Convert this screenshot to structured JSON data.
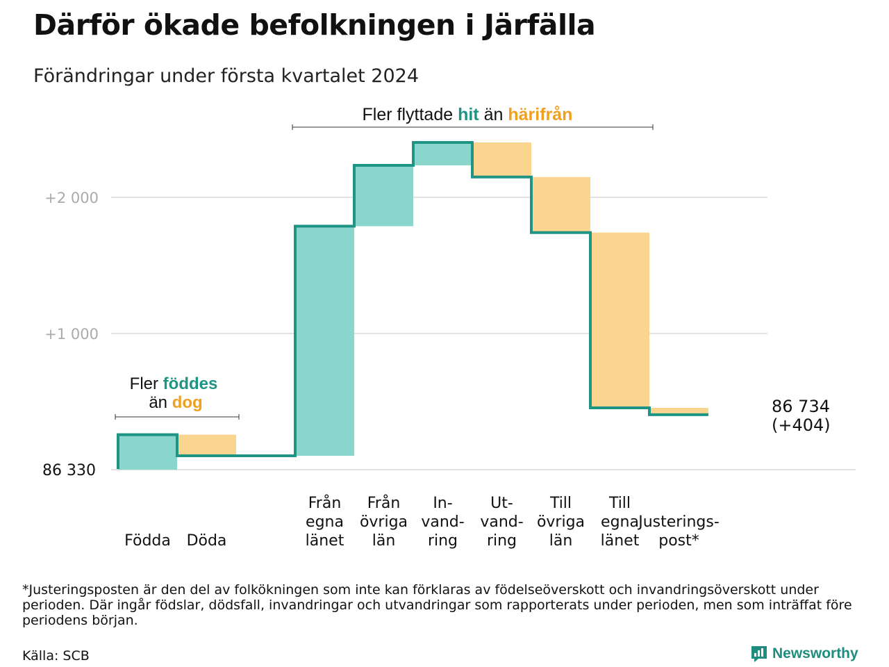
{
  "title": "Därför ökade befolkningen i Järfälla",
  "subtitle": "Förändringar under första kvartalet 2024",
  "footnote": "*Justeringsposten är den del av folkökningen som inte kan förklaras av födelseöverskott och invandringsöverskott under perioden. Där ingår födslar, dödsfall, invandringar och utvandringar som rapporterats under perioden, men som inträffat före periodens början.",
  "source": "Källa: SCB",
  "brand": "Newsworthy",
  "colors": {
    "line": "#1e9484",
    "positive": "#8ad5cc",
    "negative": "#fad590",
    "teal_text": "#1e9484",
    "orange_text": "#f0a020",
    "grid": "#e2e2e2",
    "tick": "#aaaaaa"
  },
  "annotations": {
    "births": {
      "prefix": "Fler",
      "pos_word": "föddes",
      "middle": "än",
      "neg_word": "dog"
    },
    "migration": {
      "prefix": "Fler flyttade",
      "pos_word": "hit",
      "middle": "än",
      "neg_word": "härifrån"
    }
  },
  "chart_data": {
    "type": "waterfall",
    "start_label": "86  330",
    "end_label": "86 734",
    "end_change_label": "(+404)",
    "y_ticks": [
      {
        "value": 1000,
        "label": "+1   000"
      },
      {
        "value": 2000,
        "label": "+2   000"
      }
    ],
    "ylim": [
      0,
      2420
    ],
    "steps": [
      {
        "label_lines": [
          "Födda"
        ],
        "change": 257,
        "kind": "positive"
      },
      {
        "label_lines": [
          "Döda"
        ],
        "change": -155,
        "kind": "negative"
      },
      {
        "label_lines": [],
        "change": 0,
        "kind": "gap"
      },
      {
        "label_lines": [
          "Från",
          "egna",
          "länet"
        ],
        "change": 1686,
        "kind": "positive"
      },
      {
        "label_lines": [
          "Från",
          "övriga",
          "län"
        ],
        "change": 447,
        "kind": "positive"
      },
      {
        "label_lines": [
          "In-",
          "vand-",
          "ring"
        ],
        "change": 168,
        "kind": "positive"
      },
      {
        "label_lines": [
          "Ut-",
          "vand-",
          "ring"
        ],
        "change": -254,
        "kind": "negative"
      },
      {
        "label_lines": [
          "Till",
          "övriga",
          "län"
        ],
        "change": -408,
        "kind": "negative"
      },
      {
        "label_lines": [
          "Till",
          "egna",
          "länet"
        ],
        "change": -1287,
        "kind": "negative"
      },
      {
        "label_lines": [
          "Justerings-",
          "post*"
        ],
        "change": -50,
        "kind": "negative"
      }
    ]
  }
}
